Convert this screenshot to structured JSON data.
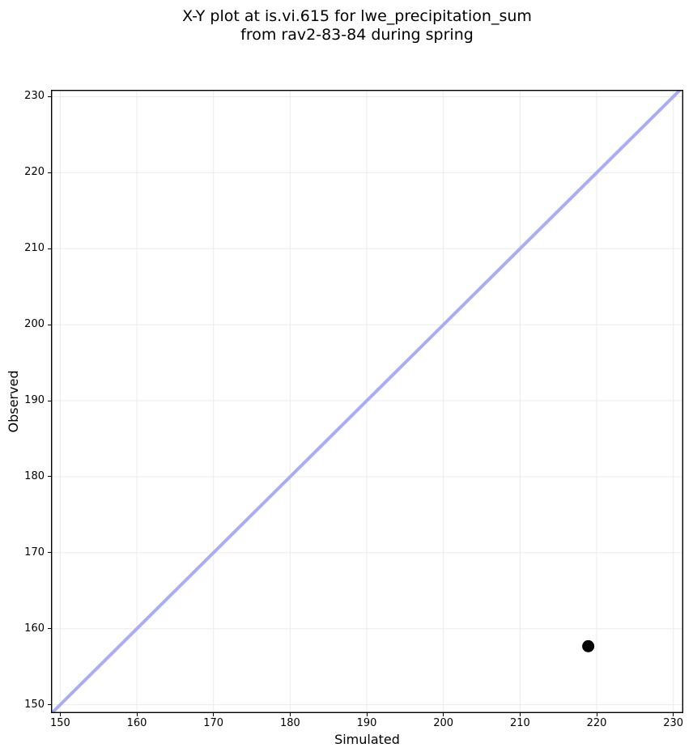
{
  "figure": {
    "title_line1": "X-Y plot at is.vi.615 for lwe_precipitation_sum",
    "title_line2": "from rav2-83-84 during spring"
  },
  "chart_data": {
    "type": "scatter",
    "title": "X-Y plot at is.vi.615 for lwe_precipitation_sum from rav2-83-84 during spring",
    "xlabel": "Simulated",
    "ylabel": "Observed",
    "xlim": [
      148.8,
      231.3
    ],
    "ylim": [
      148.9,
      230.9
    ],
    "xticks": [
      150,
      160,
      170,
      180,
      190,
      200,
      210,
      220,
      230
    ],
    "yticks": [
      150,
      160,
      170,
      180,
      190,
      200,
      210,
      220,
      230
    ],
    "grid": true,
    "legend": "none",
    "identity_line": {
      "present": true,
      "equation": "y = x",
      "color": "#a8adf5",
      "stroke_width": 4
    },
    "series": [
      {
        "name": "observed-vs-simulated",
        "marker": "circle",
        "marker_color": "#000000",
        "marker_radius": 7.5,
        "points": [
          {
            "x": 218.9,
            "y": 157.7
          }
        ]
      }
    ],
    "colors": {
      "background": "#ffffff",
      "grid": "#ebebeb",
      "spine": "#000000",
      "text": "#000000"
    }
  }
}
